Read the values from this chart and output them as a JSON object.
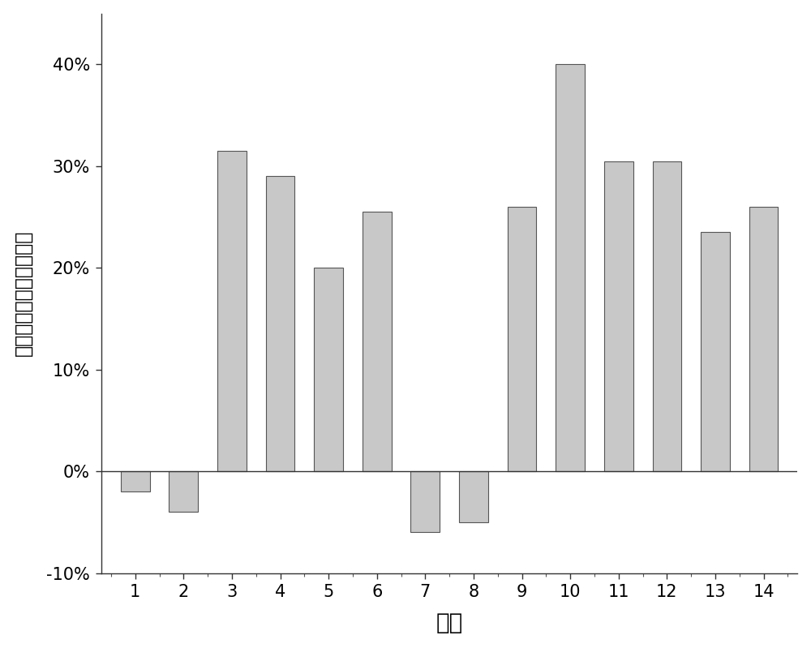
{
  "categories": [
    1,
    2,
    3,
    4,
    5,
    6,
    7,
    8,
    9,
    10,
    11,
    12,
    13,
    14
  ],
  "values": [
    -2.0,
    -4.0,
    31.5,
    29.0,
    20.0,
    25.5,
    -6.0,
    -5.0,
    26.0,
    40.0,
    30.5,
    30.5,
    23.5,
    26.0
  ],
  "bar_color": "#c8c8c8",
  "bar_edgecolor": "#555555",
  "bar_linewidth": 0.8,
  "xlabel": "处理",
  "ylabel": "各处理土壤有效悆降低率",
  "ylim": [
    -10,
    45
  ],
  "yticks": [
    -10,
    0,
    10,
    20,
    30,
    40
  ],
  "yticklabels": [
    "-10%",
    "0%",
    "10%",
    "20%",
    "30%",
    "40%"
  ],
  "background_color": "#ffffff",
  "bar_width": 0.6,
  "xlabel_fontsize": 20,
  "ylabel_fontsize": 17,
  "tick_fontsize": 15,
  "spine_linewidth": 1.0
}
